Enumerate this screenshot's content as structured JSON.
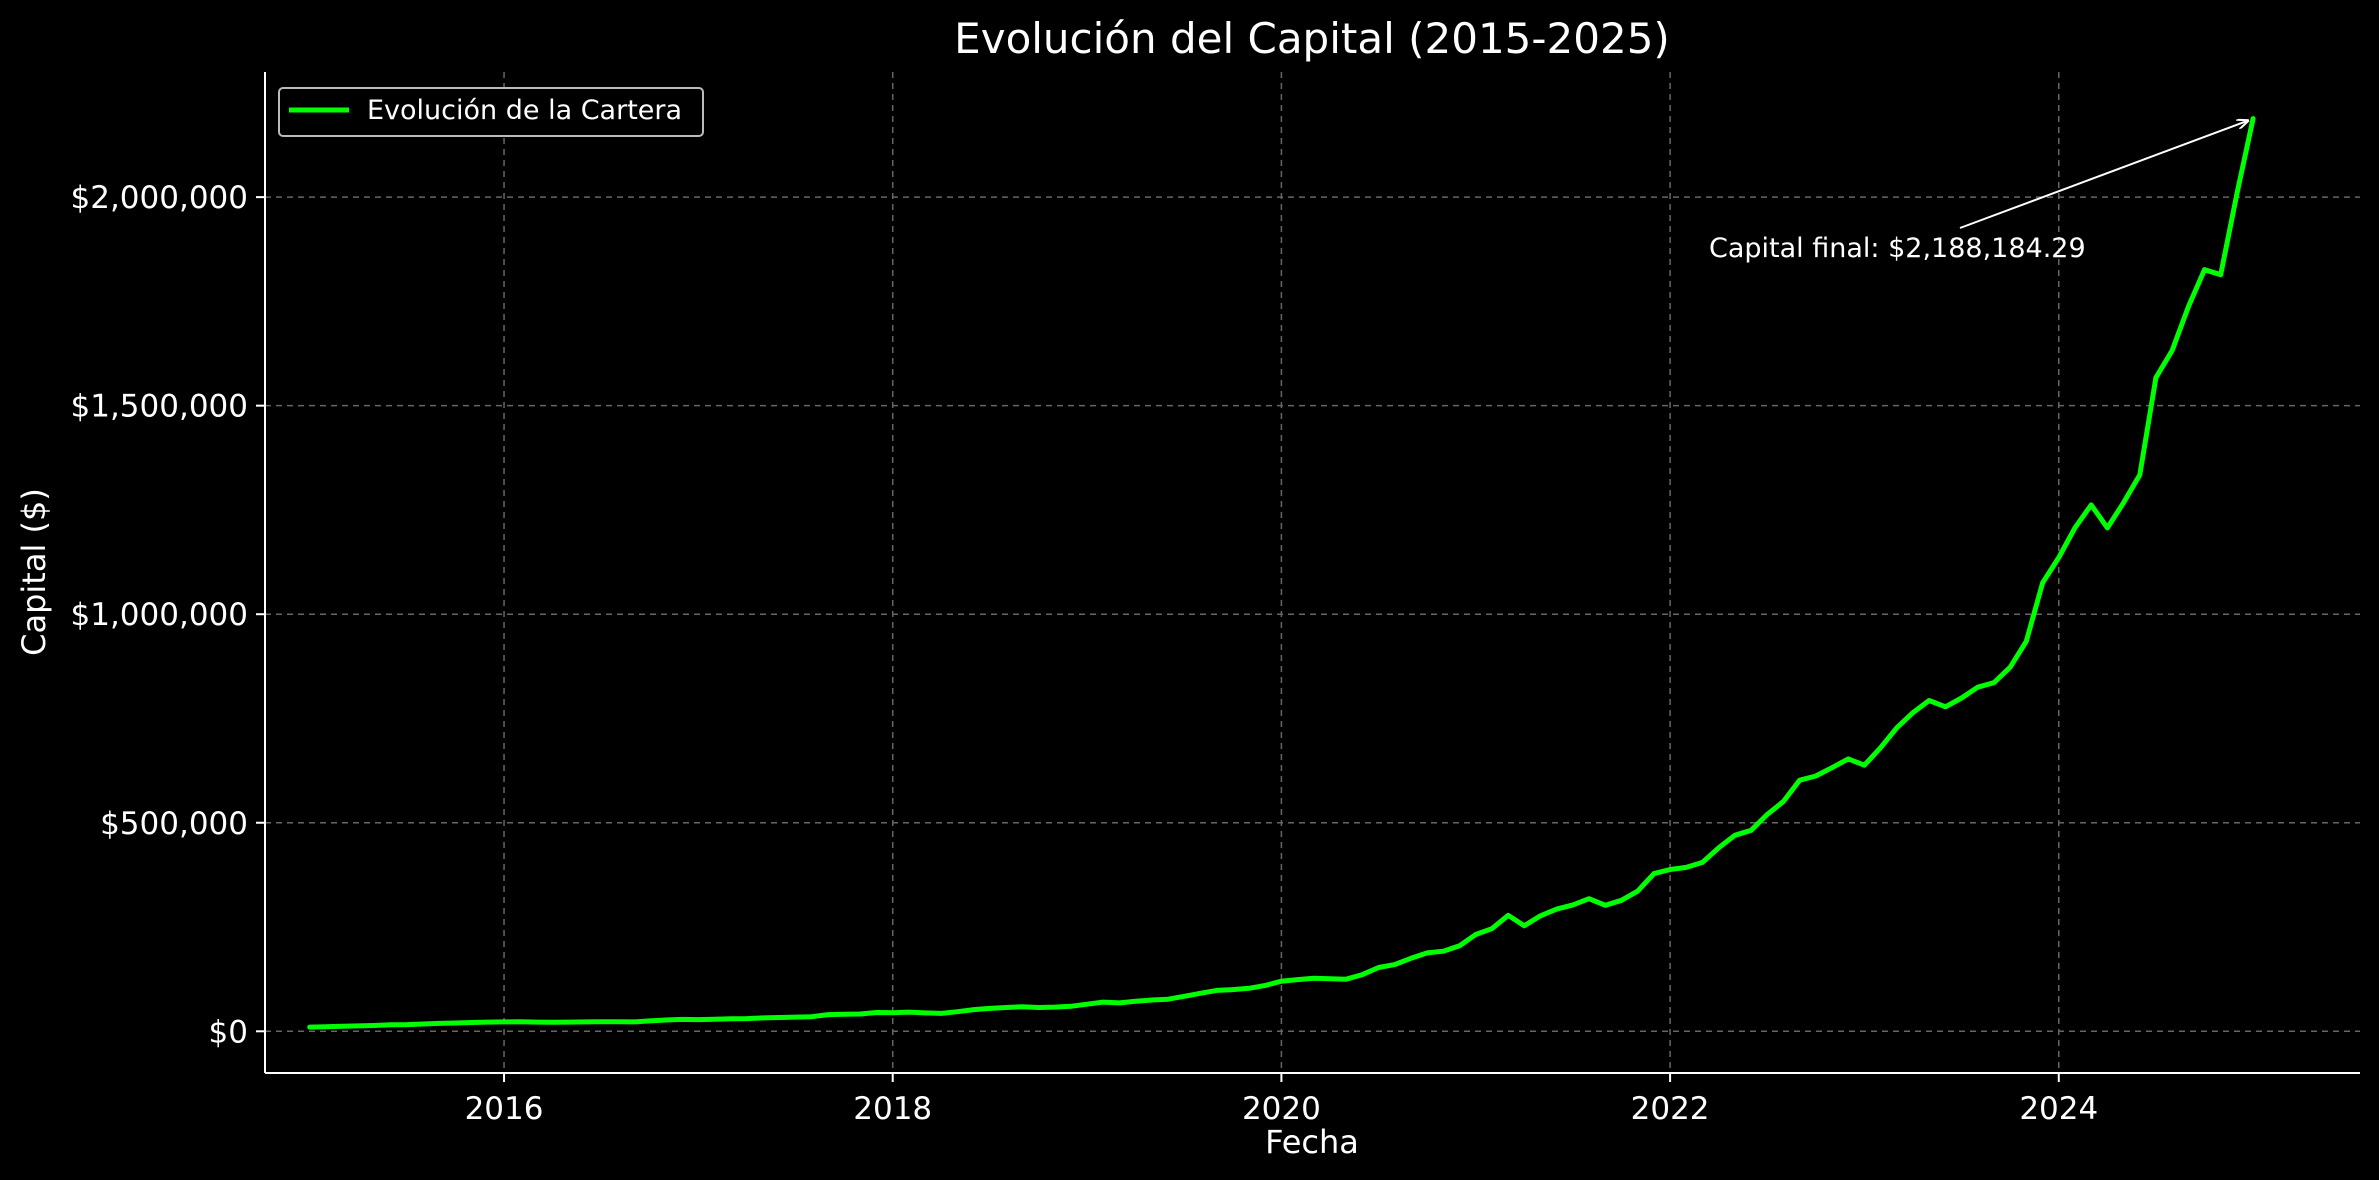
{
  "chart_data": {
    "type": "line",
    "title": "Evolución del Capital (2015-2025)",
    "xlabel": "Fecha",
    "ylabel": "Capital ($)",
    "xlim": [
      2014.77,
      2025.55
    ],
    "ylim": [
      -100000,
      2300000
    ],
    "x_ticks": [
      2016,
      2018,
      2020,
      2022,
      2024
    ],
    "x_tick_labels": [
      "2016",
      "2018",
      "2020",
      "2022",
      "2024"
    ],
    "y_ticks": [
      0,
      500000,
      1000000,
      1500000,
      2000000
    ],
    "y_tick_labels": [
      "$0",
      "$500,000",
      "$1,000,000",
      "$1,500,000",
      "$2,000,000"
    ],
    "grid": true,
    "legend_position": "top-left",
    "series": [
      {
        "name": "Evolución de la Cartera",
        "color": "#00ff00",
        "x": [
          2015.0,
          2015.083,
          2015.167,
          2015.25,
          2015.333,
          2015.417,
          2015.5,
          2015.583,
          2015.667,
          2015.75,
          2015.833,
          2015.917,
          2016.0,
          2016.083,
          2016.167,
          2016.25,
          2016.333,
          2016.417,
          2016.5,
          2016.583,
          2016.667,
          2016.75,
          2016.833,
          2016.917,
          2017.0,
          2017.083,
          2017.167,
          2017.25,
          2017.333,
          2017.417,
          2017.5,
          2017.583,
          2017.667,
          2017.75,
          2017.833,
          2017.917,
          2018.0,
          2018.083,
          2018.167,
          2018.25,
          2018.333,
          2018.417,
          2018.5,
          2018.583,
          2018.667,
          2018.75,
          2018.833,
          2018.917,
          2019.0,
          2019.083,
          2019.167,
          2019.25,
          2019.333,
          2019.417,
          2019.5,
          2019.583,
          2019.667,
          2019.75,
          2019.833,
          2019.917,
          2020.0,
          2020.083,
          2020.167,
          2020.25,
          2020.333,
          2020.417,
          2020.5,
          2020.583,
          2020.667,
          2020.75,
          2020.833,
          2020.917,
          2021.0,
          2021.083,
          2021.167,
          2021.25,
          2021.333,
          2021.417,
          2021.5,
          2021.583,
          2021.667,
          2021.75,
          2021.833,
          2021.917,
          2022.0,
          2022.083,
          2022.167,
          2022.25,
          2022.333,
          2022.417,
          2022.5,
          2022.583,
          2022.667,
          2022.75,
          2022.833,
          2022.917,
          2023.0,
          2023.083,
          2023.167,
          2023.25,
          2023.333,
          2023.417,
          2023.5,
          2023.583,
          2023.667,
          2023.75,
          2023.833,
          2023.917,
          2024.0,
          2024.083,
          2024.167,
          2024.25,
          2024.333,
          2024.417,
          2024.5,
          2024.583,
          2024.667,
          2024.75,
          2024.833,
          2024.917,
          2025.0
        ],
        "y": [
          10000,
          11000,
          12000,
          13000,
          14000,
          15500,
          16000,
          17500,
          19000,
          20000,
          21000,
          22000,
          22500,
          23000,
          22000,
          21500,
          22000,
          22500,
          23000,
          23000,
          22500,
          25000,
          27000,
          28500,
          28000,
          29000,
          30000,
          30500,
          32000,
          33000,
          34000,
          35000,
          40000,
          41000,
          41500,
          45000,
          44500,
          46000,
          44000,
          43000,
          47000,
          52000,
          55000,
          57000,
          59000,
          57000,
          58000,
          60000,
          65000,
          70000,
          68000,
          72000,
          75000,
          77000,
          84000,
          91000,
          98000,
          100000,
          103000,
          110000,
          120000,
          124000,
          127000,
          126000,
          125000,
          136000,
          153000,
          160000,
          175000,
          188000,
          192000,
          205000,
          232000,
          246000,
          278000,
          253000,
          277000,
          293000,
          303000,
          318000,
          302000,
          314000,
          336000,
          378000,
          388000,
          393000,
          405000,
          440000,
          470000,
          482000,
          520000,
          551000,
          602000,
          612000,
          632000,
          653000,
          638000,
          680000,
          728000,
          764000,
          793000,
          778000,
          799000,
          825000,
          836000,
          873000,
          935000,
          1075000,
          1136000,
          1207000,
          1262000,
          1207000,
          1267000,
          1334000,
          1567000,
          1632000,
          1737000,
          1826000,
          1814000,
          2009000,
          2188184
        ]
      }
    ],
    "annotation": {
      "text": "Capital final: $2,188,184.29",
      "x": 2025.0,
      "y": 2188184.29
    }
  }
}
